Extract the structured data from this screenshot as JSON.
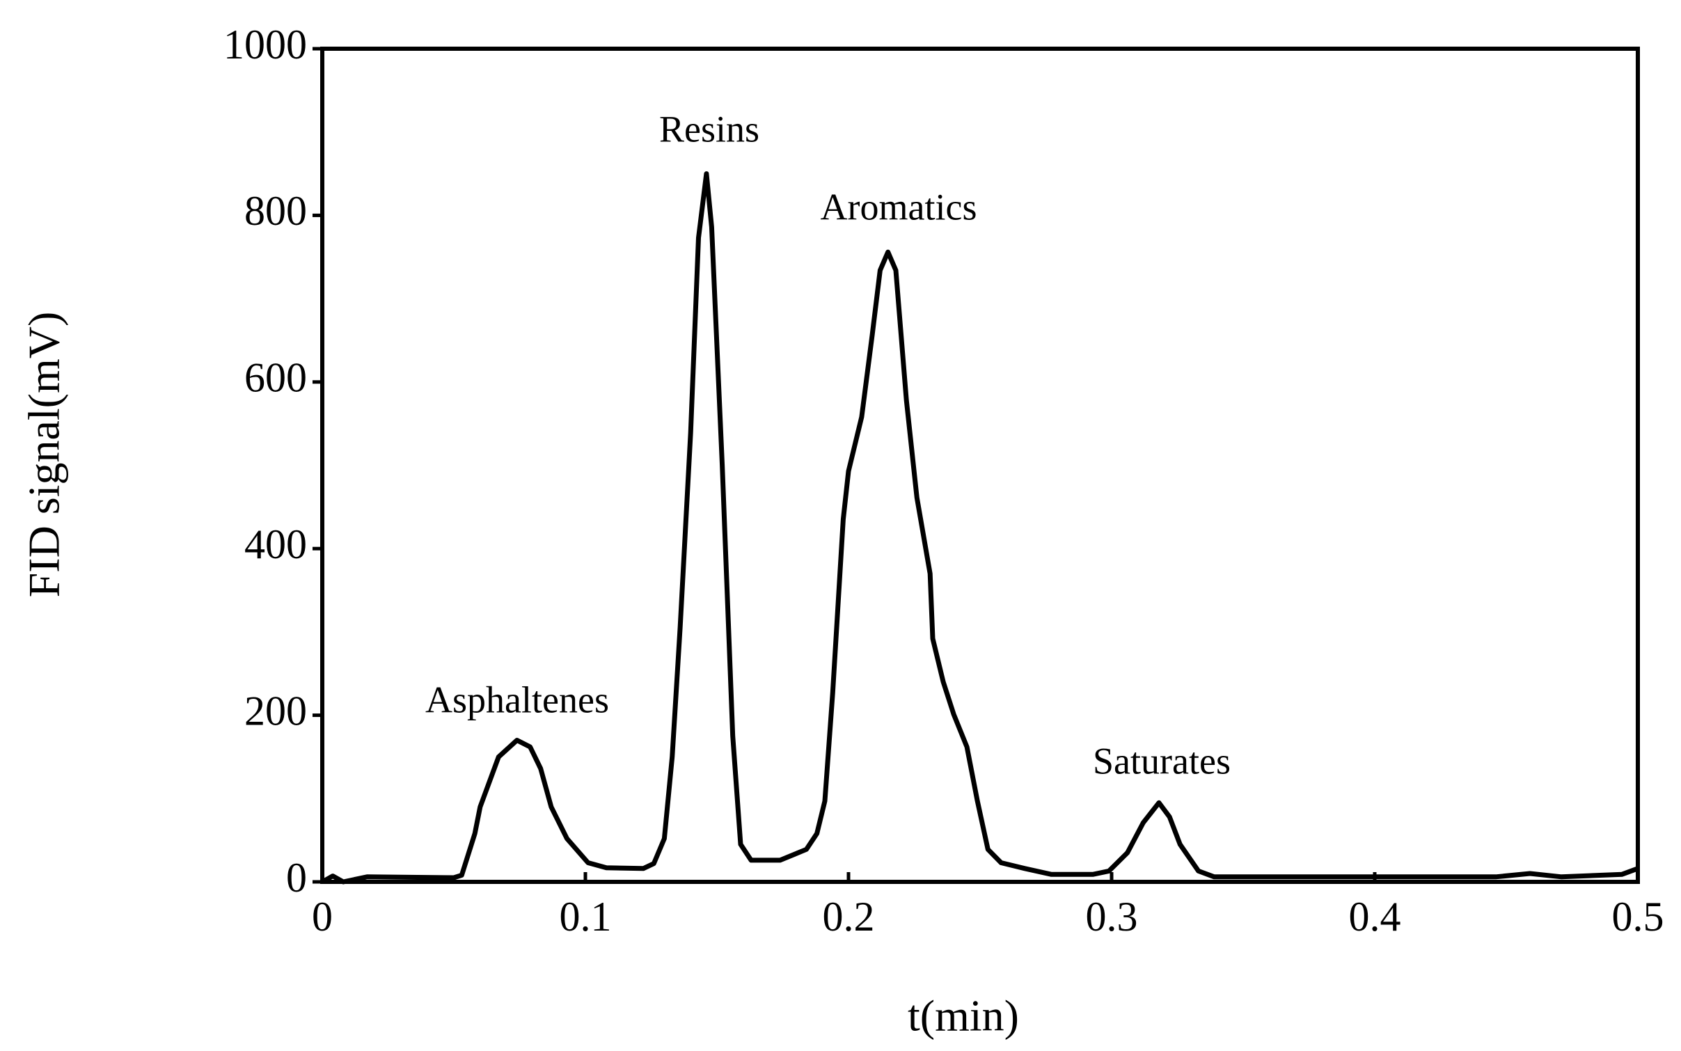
{
  "chart_data": {
    "type": "line",
    "x_label": "t(min)",
    "y_label": "FID signal(mV)",
    "annotations": [
      "Asphaltenes",
      "Resins",
      "Aromatics",
      "Saturates"
    ],
    "xlim": [
      0,
      0.5
    ],
    "ylim": [
      0,
      1000
    ],
    "xticks": [
      0,
      0.1,
      0.2,
      0.3,
      0.4,
      0.5
    ],
    "yticks": [
      0,
      200,
      400,
      600,
      800,
      1000
    ],
    "grid": false,
    "series": [
      {
        "color": "#000000",
        "x": [
          0,
          0.004,
          0.008,
          0.017,
          0.05,
          0.053,
          0.058,
          0.06,
          0.067,
          0.074,
          0.079,
          0.083,
          0.087,
          0.093,
          0.101,
          0.108,
          0.122,
          0.126,
          0.13,
          0.133,
          0.136,
          0.14,
          0.143,
          0.146,
          0.148,
          0.152,
          0.156,
          0.159,
          0.163,
          0.174,
          0.184,
          0.188,
          0.191,
          0.194,
          0.198,
          0.2,
          0.205,
          0.209,
          0.212,
          0.215,
          0.218,
          0.222,
          0.226,
          0.231,
          0.232,
          0.236,
          0.24,
          0.245,
          0.249,
          0.253,
          0.258,
          0.267,
          0.277,
          0.293,
          0.299,
          0.306,
          0.312,
          0.318,
          0.322,
          0.326,
          0.333,
          0.339,
          0.446,
          0.459,
          0.471,
          0.494,
          0.5
        ],
        "values": [
          0,
          7,
          0,
          6,
          5,
          8,
          58,
          90,
          150,
          170,
          162,
          136,
          90,
          52,
          23,
          17,
          16,
          22,
          52,
          150,
          305,
          539,
          773,
          850,
          786,
          500,
          175,
          45,
          26,
          26,
          39,
          58,
          97,
          227,
          435,
          493,
          558,
          656,
          734,
          756,
          734,
          578,
          461,
          370,
          292,
          240,
          201,
          162,
          97,
          39,
          23,
          16,
          9,
          9,
          13,
          35,
          71,
          95,
          78,
          45,
          13,
          6,
          6,
          10,
          6,
          9,
          16
        ]
      }
    ]
  }
}
